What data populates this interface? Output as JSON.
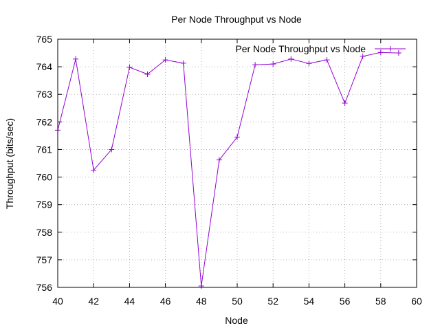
{
  "chart_data": {
    "type": "line",
    "title": "Per Node Throughput vs Node",
    "xlabel": "Node",
    "ylabel": "Throughput (bits/sec)",
    "xlim": [
      40,
      60
    ],
    "ylim": [
      756,
      765
    ],
    "xticks": [
      40,
      42,
      44,
      46,
      48,
      50,
      52,
      54,
      56,
      58,
      60
    ],
    "yticks": [
      756,
      757,
      758,
      759,
      760,
      761,
      762,
      763,
      764,
      765
    ],
    "grid": true,
    "legend_position": "top-right",
    "series": [
      {
        "name": "Per Node Throughput vs Node",
        "color": "#9400d3",
        "marker": "plus",
        "x": [
          40,
          41,
          42,
          43,
          44,
          45,
          46,
          47,
          48,
          49,
          50,
          51,
          52,
          53,
          54,
          55,
          56,
          57,
          58,
          59
        ],
        "y": [
          761.7,
          764.28,
          760.25,
          761.0,
          763.98,
          763.73,
          764.25,
          764.13,
          756.05,
          760.62,
          761.45,
          764.07,
          764.1,
          764.28,
          764.12,
          764.25,
          762.68,
          764.38,
          764.52,
          764.5
        ]
      }
    ]
  }
}
